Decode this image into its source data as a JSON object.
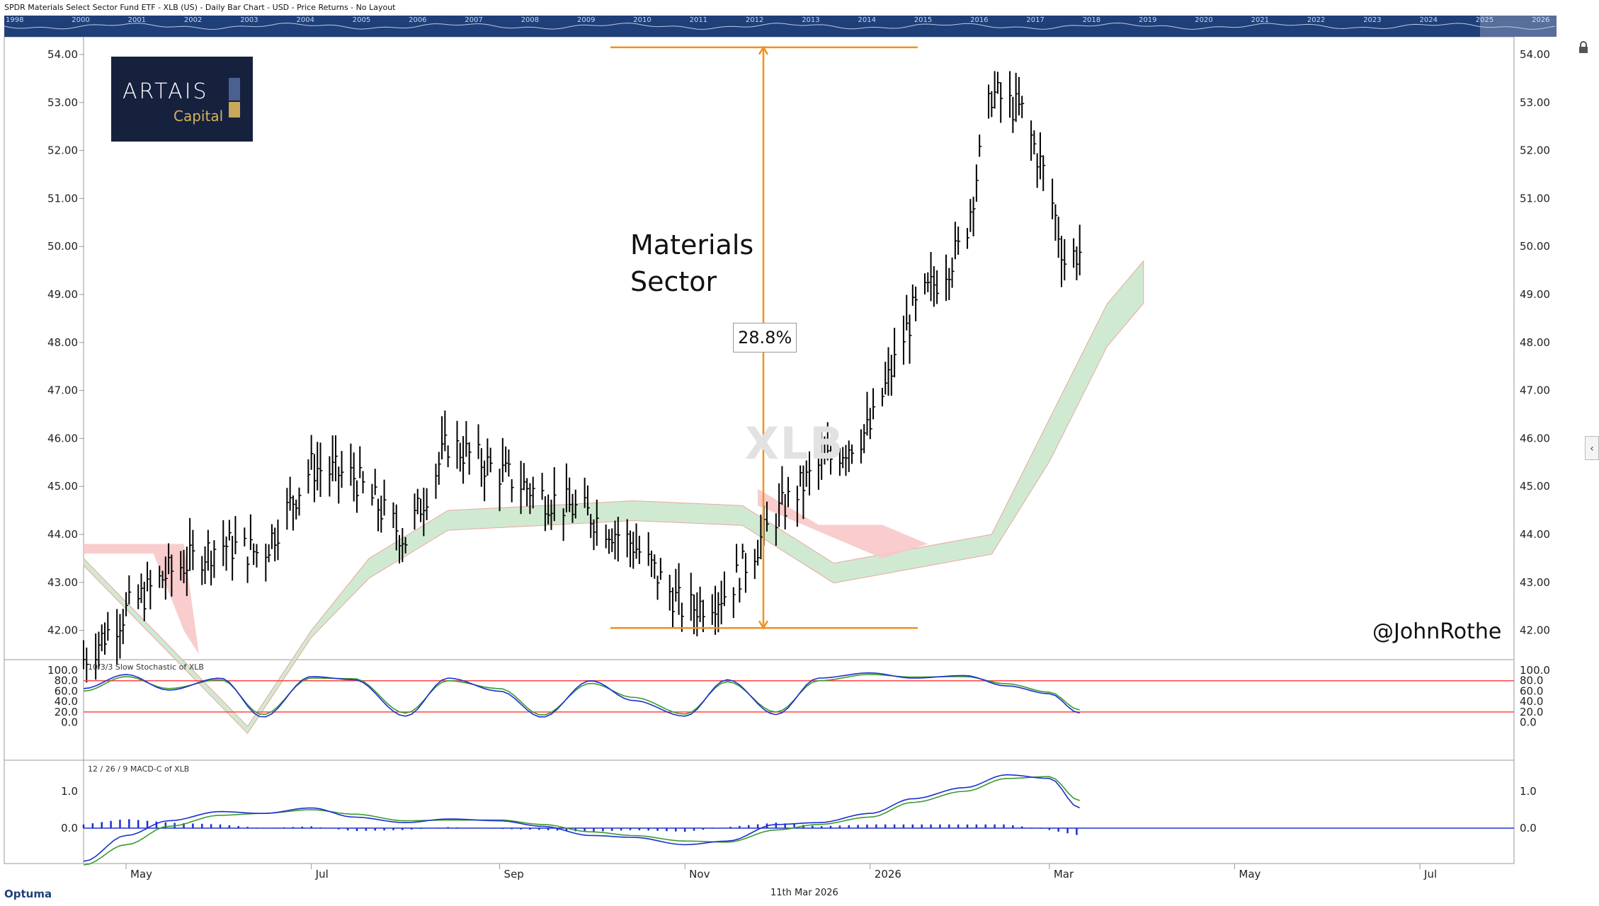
{
  "header": {
    "title": "SPDR Materials Select Sector Fund ETF - XLB (US) - Daily Bar Chart - USD - Price Returns - No Layout"
  },
  "overview": {
    "years": [
      "1998",
      "2000",
      "2001",
      "2002",
      "2003",
      "2004",
      "2005",
      "2006",
      "2007",
      "2008",
      "2009",
      "2010",
      "2011",
      "2012",
      "2013",
      "2014",
      "2015",
      "2016",
      "2017",
      "2018",
      "2019",
      "2020",
      "2021",
      "2022",
      "2023",
      "2024",
      "2025",
      "2026"
    ]
  },
  "annotations": {
    "sector_line1": "Materials",
    "sector_line2": "Sector",
    "percent_change": "28.8%",
    "watermark": "XLB",
    "handle": "@JohnRothe",
    "logo_brand": "ARTAIS",
    "logo_sub": "Capital"
  },
  "footer": {
    "date": "11th Mar 2026",
    "brand": "Optuma"
  },
  "colors": {
    "price": "#000000",
    "cloud_bull": "#c8e6c9",
    "cloud_bear": "#f8c8c8",
    "measure": "#f0921e",
    "stoch_k": "#1d2fd0",
    "stoch_d": "#3a9a2e",
    "band": "#ff4444",
    "overview_bg": "#1f3f79"
  },
  "chart_data": [
    {
      "type": "line",
      "title": "",
      "panel": "price",
      "series_name": "XLB daily bars (close, approximate)",
      "x": [
        "2025-04-17",
        "2025-05-01",
        "2025-05-15",
        "2025-06-01",
        "2025-06-15",
        "2025-07-01",
        "2025-07-15",
        "2025-08-01",
        "2025-08-15",
        "2025-09-01",
        "2025-09-15",
        "2025-10-01",
        "2025-10-15",
        "2025-11-01",
        "2025-11-15",
        "2025-12-01",
        "2025-12-15",
        "2026-01-01",
        "2026-01-15",
        "2026-02-01",
        "2026-02-10",
        "2026-02-20",
        "2026-03-01",
        "2026-03-06",
        "2026-03-11"
      ],
      "values": [
        41.4,
        42.4,
        43.2,
        43.8,
        43.6,
        45.4,
        45.2,
        43.9,
        45.9,
        45.3,
        44.8,
        44.4,
        43.8,
        42.4,
        42.8,
        44.4,
        45.4,
        46.2,
        48.6,
        50.1,
        53.2,
        52.8,
        51.2,
        49.7,
        49.9
      ],
      "ylim": [
        41.4,
        54.2
      ],
      "yticks": [
        "54.00",
        "53.00",
        "52.00",
        "51.00",
        "50.00",
        "49.00",
        "48.00",
        "47.00",
        "46.00",
        "45.00",
        "44.00",
        "43.00",
        "42.00"
      ],
      "xticks": [
        "May",
        "Jul",
        "Sep",
        "Nov",
        "2026",
        "Mar",
        "May",
        "Jul"
      ],
      "measure": {
        "low": 42.05,
        "high": 54.15,
        "label": "28.8%"
      }
    },
    {
      "type": "area",
      "panel": "price",
      "series_name": "Ichimoku cloud (lower edge, approximate)",
      "x": [
        "2025-04-17",
        "2025-06-10",
        "2025-07-01",
        "2025-07-20",
        "2025-08-15",
        "2025-09-15",
        "2025-10-15",
        "2025-11-20",
        "2025-12-20",
        "2026-01-15",
        "2026-02-10",
        "2026-03-01",
        "2026-03-20",
        "2026-04-01"
      ],
      "values": [
        43.5,
        40.0,
        42.0,
        43.5,
        44.5,
        44.6,
        44.7,
        44.6,
        43.4,
        43.7,
        44.0,
        46.4,
        48.8,
        49.7
      ]
    },
    {
      "type": "line",
      "title": "10/3/3 Slow Stochastic of XLB",
      "panel": "stochastic",
      "x": [
        "2025-04-17",
        "2025-05-01",
        "2025-05-15",
        "2025-06-01",
        "2025-06-15",
        "2025-07-01",
        "2025-07-15",
        "2025-08-01",
        "2025-08-15",
        "2025-09-01",
        "2025-09-15",
        "2025-10-01",
        "2025-10-15",
        "2025-11-01",
        "2025-11-15",
        "2025-12-01",
        "2025-12-15",
        "2026-01-01",
        "2026-01-15",
        "2026-02-01",
        "2026-02-15",
        "2026-03-01",
        "2026-03-11"
      ],
      "series": [
        {
          "name": "%K",
          "values": [
            65,
            92,
            62,
            85,
            10,
            88,
            82,
            12,
            85,
            60,
            10,
            80,
            42,
            12,
            82,
            15,
            85,
            95,
            85,
            90,
            70,
            55,
            18
          ]
        },
        {
          "name": "%D",
          "values": [
            60,
            88,
            65,
            82,
            15,
            85,
            84,
            18,
            80,
            65,
            14,
            75,
            48,
            16,
            78,
            20,
            80,
            92,
            87,
            88,
            74,
            58,
            24
          ]
        }
      ],
      "ylim": [
        0,
        100
      ],
      "yticks": [
        "100.0",
        "80.0",
        "60.0",
        "40.0",
        "20.0",
        "0.0"
      ],
      "bands": [
        80,
        20
      ]
    },
    {
      "type": "bar",
      "title": "12 / 26 / 9 MACD-C of XLB",
      "panel": "macd",
      "x": [
        "2025-04-17",
        "2025-05-01",
        "2025-05-15",
        "2025-06-01",
        "2025-06-15",
        "2025-07-01",
        "2025-07-15",
        "2025-08-01",
        "2025-08-15",
        "2025-09-01",
        "2025-09-15",
        "2025-10-01",
        "2025-10-15",
        "2025-11-01",
        "2025-11-15",
        "2025-12-01",
        "2025-12-15",
        "2026-01-01",
        "2026-01-15",
        "2026-02-01",
        "2026-02-15",
        "2026-03-01",
        "2026-03-11"
      ],
      "series": [
        {
          "name": "MACD",
          "values": [
            -0.9,
            -0.2,
            0.2,
            0.45,
            0.4,
            0.55,
            0.3,
            0.15,
            0.25,
            0.2,
            0.05,
            -0.2,
            -0.25,
            -0.45,
            -0.35,
            0.1,
            0.15,
            0.4,
            0.8,
            1.1,
            1.45,
            1.35,
            0.55
          ]
        },
        {
          "name": "Signal",
          "values": [
            -1.0,
            -0.45,
            0.05,
            0.35,
            0.4,
            0.5,
            0.38,
            0.2,
            0.22,
            0.22,
            0.1,
            -0.1,
            -0.2,
            -0.35,
            -0.38,
            -0.05,
            0.1,
            0.3,
            0.7,
            1.0,
            1.35,
            1.4,
            0.75
          ]
        },
        {
          "name": "Histogram",
          "values": [
            0.1,
            0.25,
            0.15,
            0.1,
            0.0,
            0.05,
            -0.08,
            -0.05,
            0.03,
            -0.02,
            -0.05,
            -0.1,
            -0.05,
            -0.1,
            0.03,
            0.15,
            0.05,
            0.1,
            0.1,
            0.1,
            0.1,
            -0.05,
            -0.2
          ]
        }
      ],
      "yticks": [
        "1.0",
        "0.0"
      ]
    }
  ]
}
